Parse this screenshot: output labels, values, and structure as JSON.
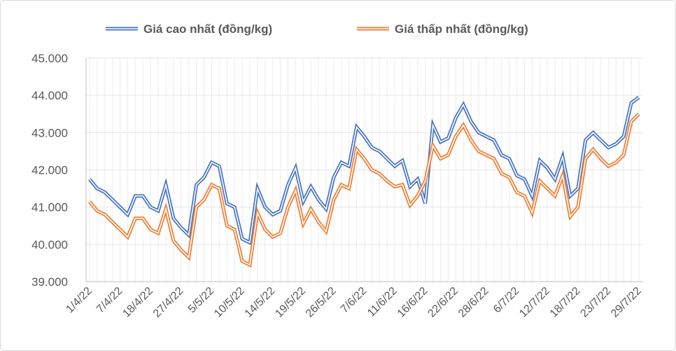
{
  "chart_data": {
    "type": "line",
    "title": "",
    "xlabel": "",
    "ylabel": "",
    "ylim": [
      39000,
      45000
    ],
    "yticks": [
      "39.000",
      "40.000",
      "41.000",
      "42.000",
      "43.000",
      "44.000",
      "45.000"
    ],
    "ytick_values": [
      39000,
      40000,
      41000,
      42000,
      43000,
      44000,
      45000
    ],
    "xtick_labels": [
      "1/4/22",
      "7/4/22",
      "18/4/22",
      "27/4/22",
      "5/5/22",
      "10/5/22",
      "14/5/22",
      "19/5/22",
      "26/5/22",
      "7/6/22",
      "11/6/22",
      "16/6/22",
      "22/6/22",
      "28/6/22",
      "6/7/22",
      "12/7/22",
      "18/7/22",
      "23/7/22",
      "29/7/22"
    ],
    "xtick_every": 4,
    "grid": true,
    "legend_position": "top",
    "series": [
      {
        "name": "Giá cao nhất (đồng/kg)",
        "color": "#4472C4",
        "values": [
          41750,
          41500,
          41400,
          41200,
          41000,
          40800,
          41300,
          41300,
          41000,
          40900,
          41600,
          40700,
          40450,
          40250,
          41600,
          41800,
          42200,
          42100,
          41100,
          41000,
          40150,
          40050,
          41500,
          41000,
          40800,
          40900,
          41600,
          42050,
          41150,
          41550,
          41200,
          40950,
          41800,
          42200,
          42100,
          43150,
          42900,
          42600,
          42500,
          42300,
          42100,
          42250,
          41550,
          41750,
          41100,
          43200,
          42750,
          42850,
          43400,
          43750,
          43300,
          43000,
          42900,
          42800,
          42400,
          42300,
          41850,
          41750,
          41300,
          42250,
          42050,
          41750,
          42350,
          41300,
          41500,
          42800,
          43000,
          42800,
          42600,
          42700,
          42900,
          43800,
          43950
        ]
      },
      {
        "name": "Giá thấp nhất (đồng/kg)",
        "color": "#ED7D31",
        "values": [
          41150,
          40900,
          40800,
          40600,
          40400,
          40200,
          40700,
          40700,
          40400,
          40300,
          40950,
          40100,
          39850,
          39650,
          41000,
          41200,
          41600,
          41500,
          40500,
          40400,
          39550,
          39450,
          40850,
          40400,
          40200,
          40300,
          41000,
          41450,
          40550,
          40950,
          40600,
          40350,
          41200,
          41600,
          41500,
          42550,
          42300,
          42000,
          41900,
          41700,
          41550,
          41600,
          41050,
          41300,
          41700,
          42650,
          42300,
          42400,
          42900,
          43200,
          42800,
          42500,
          42400,
          42300,
          41900,
          41800,
          41400,
          41300,
          40850,
          41700,
          41500,
          41300,
          41850,
          40750,
          41000,
          42300,
          42550,
          42300,
          42100,
          42200,
          42400,
          43300,
          43500
        ]
      }
    ]
  }
}
